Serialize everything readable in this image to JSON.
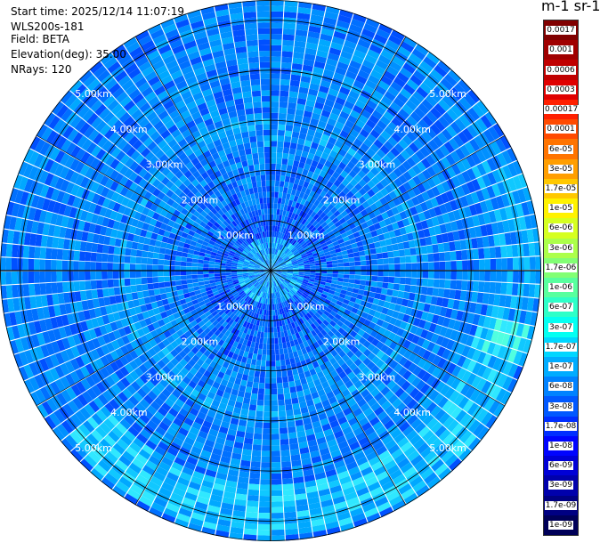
{
  "info": {
    "start_time": "Start time: 2025/12/14 11:07:19",
    "instrument": "WLS200s-181",
    "field": "Field: BETA",
    "elevation": "Elevation(deg): 35.00",
    "nrays": "NRays: 120"
  },
  "colorbar": {
    "title": "m-1 sr-1",
    "labels": [
      "0.0017",
      "0.001",
      "0.0006",
      "0.0003",
      "0.00017",
      "0.0001",
      "6e-05",
      "3e-05",
      "1.7e-05",
      "1e-05",
      "6e-06",
      "3e-06",
      "1.7e-06",
      "1e-06",
      "6e-07",
      "3e-07",
      "1.7e-07",
      "1e-07",
      "6e-08",
      "3e-08",
      "1.7e-08",
      "1e-08",
      "6e-09",
      "3e-09",
      "1.7e-09",
      "1e-09"
    ],
    "colors": [
      "#800000",
      "#a00000",
      "#c00000",
      "#e00000",
      "#ff2000",
      "#ff4a00",
      "#ff7400",
      "#ff9e00",
      "#ffc800",
      "#fff200",
      "#d6ff20",
      "#acff4a",
      "#82ff74",
      "#58ff9e",
      "#2effc8",
      "#04fff2",
      "#00d6ff",
      "#00acff",
      "#0082ff",
      "#0058ff",
      "#002eff",
      "#0004ff",
      "#0000d6",
      "#0000ac",
      "#000082",
      "#000058"
    ]
  },
  "chart_data": {
    "type": "heatmap",
    "projection": "polar-ppi",
    "field": "BETA",
    "elevation_deg": 35.0,
    "n_rays": 120,
    "range_rings_km": [
      1,
      2,
      3,
      4,
      5
    ],
    "ring_labels": [
      "1.00km",
      "2.00km",
      "3.00km",
      "4.00km",
      "5.00km"
    ],
    "max_range_km": 5.4,
    "dominant_range": "1e-08 to 1.7e-07",
    "grid": true
  }
}
